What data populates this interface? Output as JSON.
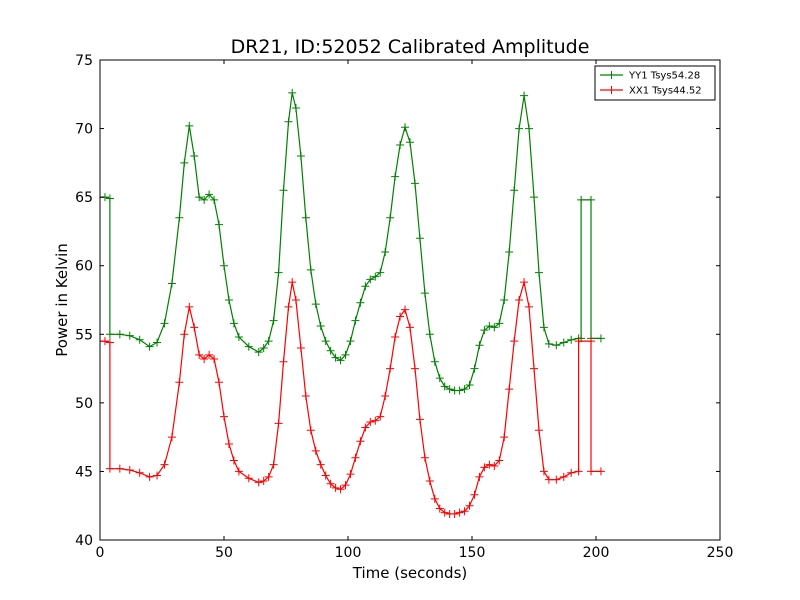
{
  "chart_data": {
    "type": "line",
    "title": "DR21, ID:52052 Calibrated Amplitude",
    "xlabel": "Time (seconds)",
    "ylabel": "Power in Kelvin",
    "xlim": [
      0,
      250
    ],
    "ylim": [
      40,
      75
    ],
    "xticks": [
      "0",
      "50",
      "100",
      "150",
      "200",
      "250"
    ],
    "yticks": [
      "40",
      "45",
      "50",
      "55",
      "60",
      "65",
      "70",
      "75"
    ],
    "grid": false,
    "legend_position": "top-right",
    "marker": "+",
    "series": [
      {
        "name": "YY1 Tsys54.28",
        "color": "#008000",
        "points": [
          [
            0,
            65
          ],
          [
            2,
            65
          ],
          [
            4,
            64.9
          ],
          [
            4,
            55
          ],
          [
            8,
            55
          ],
          [
            12,
            54.9
          ],
          [
            16,
            54.6
          ],
          [
            20,
            54.1
          ],
          [
            23,
            54.4
          ],
          [
            26,
            55.8
          ],
          [
            29,
            58.7
          ],
          [
            32,
            63.5
          ],
          [
            34,
            67.5
          ],
          [
            36,
            70.2
          ],
          [
            38,
            68
          ],
          [
            40,
            65
          ],
          [
            42,
            64.8
          ],
          [
            44,
            65.2
          ],
          [
            46,
            64.8
          ],
          [
            48,
            63
          ],
          [
            50,
            60
          ],
          [
            52,
            57.5
          ],
          [
            54,
            55.8
          ],
          [
            56,
            54.8
          ],
          [
            60,
            54.1
          ],
          [
            64,
            53.7
          ],
          [
            66,
            54
          ],
          [
            68,
            54.5
          ],
          [
            70,
            56
          ],
          [
            72,
            59.5
          ],
          [
            74,
            65.5
          ],
          [
            76,
            70.5
          ],
          [
            77.5,
            72.6
          ],
          [
            79,
            71.5
          ],
          [
            81,
            68
          ],
          [
            83,
            63.5
          ],
          [
            85,
            59.7
          ],
          [
            87,
            57.2
          ],
          [
            89,
            55.6
          ],
          [
            91,
            54.5
          ],
          [
            93,
            53.8
          ],
          [
            95,
            53.3
          ],
          [
            97,
            53.1
          ],
          [
            99,
            53.5
          ],
          [
            101,
            54.5
          ],
          [
            103,
            56
          ],
          [
            105,
            57.3
          ],
          [
            107,
            58.5
          ],
          [
            109,
            59
          ],
          [
            111,
            59.2
          ],
          [
            113,
            59.5
          ],
          [
            115,
            61
          ],
          [
            117,
            63.5
          ],
          [
            119,
            66.5
          ],
          [
            121,
            68.8
          ],
          [
            123,
            70.1
          ],
          [
            125,
            69
          ],
          [
            127,
            66
          ],
          [
            129,
            62
          ],
          [
            131,
            58
          ],
          [
            133,
            55
          ],
          [
            135,
            53
          ],
          [
            137,
            51.8
          ],
          [
            139,
            51.2
          ],
          [
            141,
            51
          ],
          [
            143,
            50.9
          ],
          [
            145,
            50.9
          ],
          [
            147,
            51
          ],
          [
            149,
            51.3
          ],
          [
            151,
            52.5
          ],
          [
            153,
            54.2
          ],
          [
            155,
            55.3
          ],
          [
            157,
            55.6
          ],
          [
            159,
            55.5
          ],
          [
            161,
            55.8
          ],
          [
            163,
            57.5
          ],
          [
            165,
            61
          ],
          [
            167,
            65.5
          ],
          [
            169,
            70
          ],
          [
            171,
            72.4
          ],
          [
            173,
            70
          ],
          [
            175,
            65
          ],
          [
            177,
            59.5
          ],
          [
            179,
            55.5
          ],
          [
            181,
            54.3
          ],
          [
            184,
            54.2
          ],
          [
            187,
            54.4
          ],
          [
            190,
            54.6
          ],
          [
            193,
            54.7
          ],
          [
            194,
            54.7
          ],
          [
            194,
            64.8
          ],
          [
            198,
            64.8
          ],
          [
            198,
            54.7
          ],
          [
            202,
            54.7
          ]
        ]
      },
      {
        "name": "XX1 Tsys44.52",
        "color": "#ff0000",
        "points": [
          [
            0,
            54.5
          ],
          [
            2,
            54.5
          ],
          [
            4,
            54.4
          ],
          [
            4,
            45.2
          ],
          [
            8,
            45.2
          ],
          [
            12,
            45.1
          ],
          [
            16,
            44.9
          ],
          [
            20,
            44.6
          ],
          [
            23,
            44.7
          ],
          [
            26,
            45.5
          ],
          [
            29,
            47.5
          ],
          [
            32,
            51.5
          ],
          [
            34,
            55
          ],
          [
            36,
            57
          ],
          [
            38,
            55.5
          ],
          [
            40,
            53.5
          ],
          [
            42,
            53.2
          ],
          [
            44,
            53.5
          ],
          [
            46,
            53.2
          ],
          [
            48,
            51.5
          ],
          [
            50,
            49
          ],
          [
            52,
            47
          ],
          [
            54,
            45.8
          ],
          [
            56,
            45
          ],
          [
            60,
            44.5
          ],
          [
            64,
            44.2
          ],
          [
            66,
            44.3
          ],
          [
            68,
            44.6
          ],
          [
            70,
            45.5
          ],
          [
            72,
            48.5
          ],
          [
            74,
            53
          ],
          [
            76,
            57
          ],
          [
            77.5,
            58.8
          ],
          [
            79,
            57.5
          ],
          [
            81,
            54
          ],
          [
            83,
            50.5
          ],
          [
            85,
            48
          ],
          [
            87,
            46.5
          ],
          [
            89,
            45.5
          ],
          [
            91,
            44.7
          ],
          [
            93,
            44.1
          ],
          [
            95,
            43.8
          ],
          [
            97,
            43.7
          ],
          [
            99,
            44
          ],
          [
            101,
            44.8
          ],
          [
            103,
            46
          ],
          [
            105,
            47.2
          ],
          [
            107,
            48.2
          ],
          [
            109,
            48.6
          ],
          [
            111,
            48.7
          ],
          [
            113,
            49
          ],
          [
            115,
            50.5
          ],
          [
            117,
            52.5
          ],
          [
            119,
            54.8
          ],
          [
            121,
            56.3
          ],
          [
            123,
            56.8
          ],
          [
            125,
            55.5
          ],
          [
            127,
            52.5
          ],
          [
            129,
            48.8
          ],
          [
            131,
            46
          ],
          [
            133,
            44.3
          ],
          [
            135,
            43
          ],
          [
            137,
            42.3
          ],
          [
            139,
            42
          ],
          [
            141,
            41.9
          ],
          [
            143,
            41.9
          ],
          [
            145,
            42
          ],
          [
            147,
            42.1
          ],
          [
            149,
            42.5
          ],
          [
            151,
            43.3
          ],
          [
            153,
            44.6
          ],
          [
            155,
            45.3
          ],
          [
            157,
            45.5
          ],
          [
            159,
            45.4
          ],
          [
            161,
            45.8
          ],
          [
            163,
            47.5
          ],
          [
            165,
            51
          ],
          [
            167,
            54.5
          ],
          [
            169,
            57.5
          ],
          [
            171,
            58.8
          ],
          [
            173,
            57
          ],
          [
            175,
            52.5
          ],
          [
            177,
            48
          ],
          [
            179,
            45
          ],
          [
            181,
            44.4
          ],
          [
            184,
            44.4
          ],
          [
            187,
            44.6
          ],
          [
            190,
            44.9
          ],
          [
            193,
            45
          ],
          [
            193,
            54.5
          ],
          [
            198,
            54.5
          ],
          [
            198,
            45
          ],
          [
            202,
            45
          ]
        ]
      }
    ]
  }
}
